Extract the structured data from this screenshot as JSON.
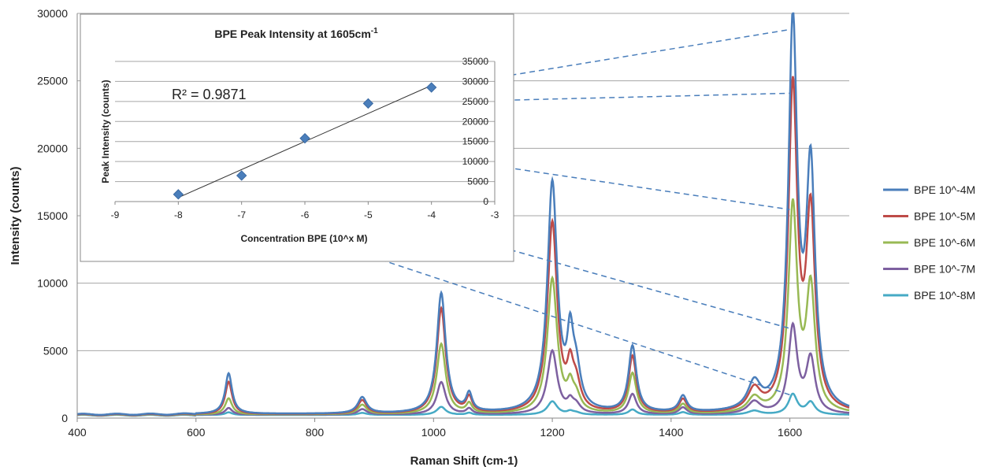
{
  "chart_data": [
    {
      "type": "line",
      "xlabel": "Raman Shift (cm-1)",
      "ylabel": "Intensity (counts)",
      "xlim": [
        400,
        1700
      ],
      "ylim": [
        0,
        30000
      ],
      "x_ticks": [
        400,
        600,
        800,
        1000,
        1200,
        1400,
        1600
      ],
      "y_ticks": [
        0,
        5000,
        10000,
        15000,
        20000,
        25000,
        30000
      ],
      "grid": "horizontal",
      "legend_position": "right",
      "peaks_cm": [
        655,
        880,
        1013,
        1060,
        1200,
        1230,
        1240,
        1335,
        1420,
        1540,
        1605,
        1635
      ],
      "series": [
        {
          "name": "BPE 10^-4M",
          "color": "#4a7ebb",
          "baseline": 300,
          "peak_heights": [
            3000,
            1200,
            8900,
            1300,
            17000,
            4500,
            2800,
            4900,
            1200,
            2000,
            28500,
            17500
          ]
        },
        {
          "name": "BPE 10^-5M",
          "color": "#be4b48",
          "baseline": 280,
          "peak_heights": [
            2400,
            1000,
            7800,
            1100,
            14100,
            2500,
            1900,
            4200,
            1000,
            1600,
            23800,
            14300
          ]
        },
        {
          "name": "BPE 10^-6M",
          "color": "#98b954",
          "baseline": 260,
          "peak_heights": [
            1200,
            700,
            5200,
            700,
            10000,
            1500,
            1100,
            3000,
            700,
            1100,
            15200,
            9000
          ]
        },
        {
          "name": "BPE 10^-7M",
          "color": "#7d60a0",
          "baseline": 250,
          "peak_heights": [
            500,
            400,
            2400,
            400,
            4700,
            700,
            600,
            1500,
            500,
            900,
            6400,
            4000
          ]
        },
        {
          "name": "BPE 10^-8M",
          "color": "#46aac5",
          "baseline": 230,
          "peak_heights": [
            200,
            150,
            600,
            150,
            1000,
            200,
            150,
            400,
            200,
            300,
            1500,
            900
          ]
        }
      ]
    },
    {
      "type": "scatter",
      "title": "BPE Peak Intensity at 1605cm",
      "title_sup": "-1",
      "xlabel": "Concentration BPE (10^x M)",
      "ylabel": "Peak Intensity (counts)",
      "xlim": [
        -9,
        -3
      ],
      "ylim": [
        0,
        35000
      ],
      "x_ticks": [
        -9,
        -8,
        -7,
        -6,
        -5,
        -4,
        -3
      ],
      "y_ticks": [
        0,
        5000,
        10000,
        15000,
        20000,
        25000,
        30000,
        35000
      ],
      "annotation": "R² = 0.9871",
      "x": [
        -8,
        -7,
        -6,
        -5,
        -4
      ],
      "y": [
        1800,
        6500,
        15800,
        24500,
        28500
      ],
      "trendline": {
        "x": [
          -8,
          -4
        ],
        "y": [
          1000,
          29000
        ]
      }
    }
  ]
}
